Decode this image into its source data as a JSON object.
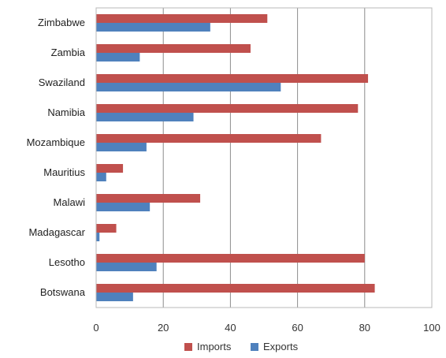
{
  "chart_data": {
    "type": "bar",
    "orientation": "horizontal",
    "categories": [
      "Zimbabwe",
      "Zambia",
      "Swaziland",
      "Namibia",
      "Mozambique",
      "Mauritius",
      "Malawi",
      "Madagascar",
      "Lesotho",
      "Botswana"
    ],
    "series": [
      {
        "name": "Imports",
        "color": "#c0504d",
        "values": [
          51,
          46,
          81,
          78,
          67,
          8,
          31,
          6,
          80,
          83
        ]
      },
      {
        "name": "Exports",
        "color": "#4f81bd",
        "values": [
          34,
          13,
          55,
          29,
          15,
          3,
          16,
          1,
          18,
          11
        ]
      }
    ],
    "xlim": [
      0,
      100
    ],
    "xticks": [
      "0",
      "20",
      "40",
      "60",
      "80",
      "100"
    ],
    "grid": true,
    "legend_position": "bottom"
  }
}
